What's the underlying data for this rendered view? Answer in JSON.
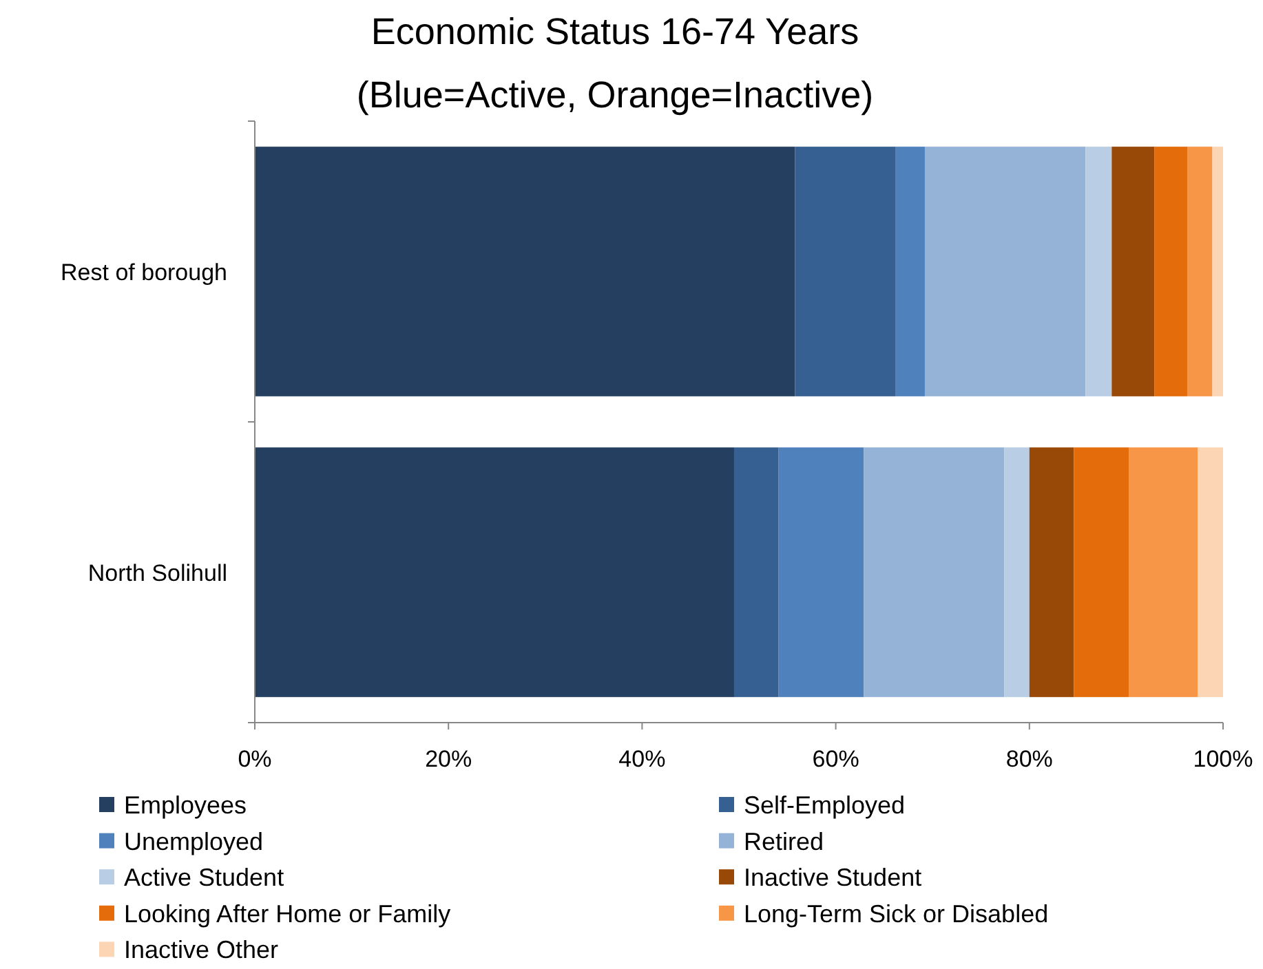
{
  "chart_data": {
    "type": "bar",
    "title": "Economic Status 16-74 Years",
    "subtitle": "(Blue=Active,  Orange=Inactive)",
    "orientation": "horizontal",
    "stacked": true,
    "categories": [
      "Rest of borough",
      "North Solihull"
    ],
    "series": [
      {
        "name": "Employees",
        "color": "#243f60",
        "values": [
          55.8,
          49.5
        ]
      },
      {
        "name": "Self-Employed",
        "color": "#376092",
        "values": [
          10.4,
          4.6
        ]
      },
      {
        "name": "Unemployed",
        "color": "#4f81bd",
        "values": [
          3.0,
          8.8
        ]
      },
      {
        "name": "Retired",
        "color": "#95b3d7",
        "values": [
          16.6,
          14.5
        ]
      },
      {
        "name": "Active Student",
        "color": "#b9cde5",
        "values": [
          2.7,
          2.6
        ]
      },
      {
        "name": "Inactive Student",
        "color": "#984807",
        "values": [
          4.4,
          4.6
        ]
      },
      {
        "name": "Looking After Home or Family",
        "color": "#e46c0a",
        "values": [
          3.4,
          5.7
        ]
      },
      {
        "name": "Long-Term Sick or Disabled",
        "color": "#f79646",
        "values": [
          2.6,
          7.1
        ]
      },
      {
        "name": "Inactive Other",
        "color": "#fcd5b5",
        "values": [
          1.1,
          2.6
        ]
      }
    ],
    "xlim": [
      0,
      100
    ],
    "xticks": [
      {
        "value": 0,
        "label": "0%"
      },
      {
        "value": 20,
        "label": "20%"
      },
      {
        "value": 40,
        "label": "40%"
      },
      {
        "value": 60,
        "label": "60%"
      },
      {
        "value": 80,
        "label": "80%"
      },
      {
        "value": 100,
        "label": "100%"
      }
    ],
    "grid": false,
    "legend": "bottom"
  }
}
